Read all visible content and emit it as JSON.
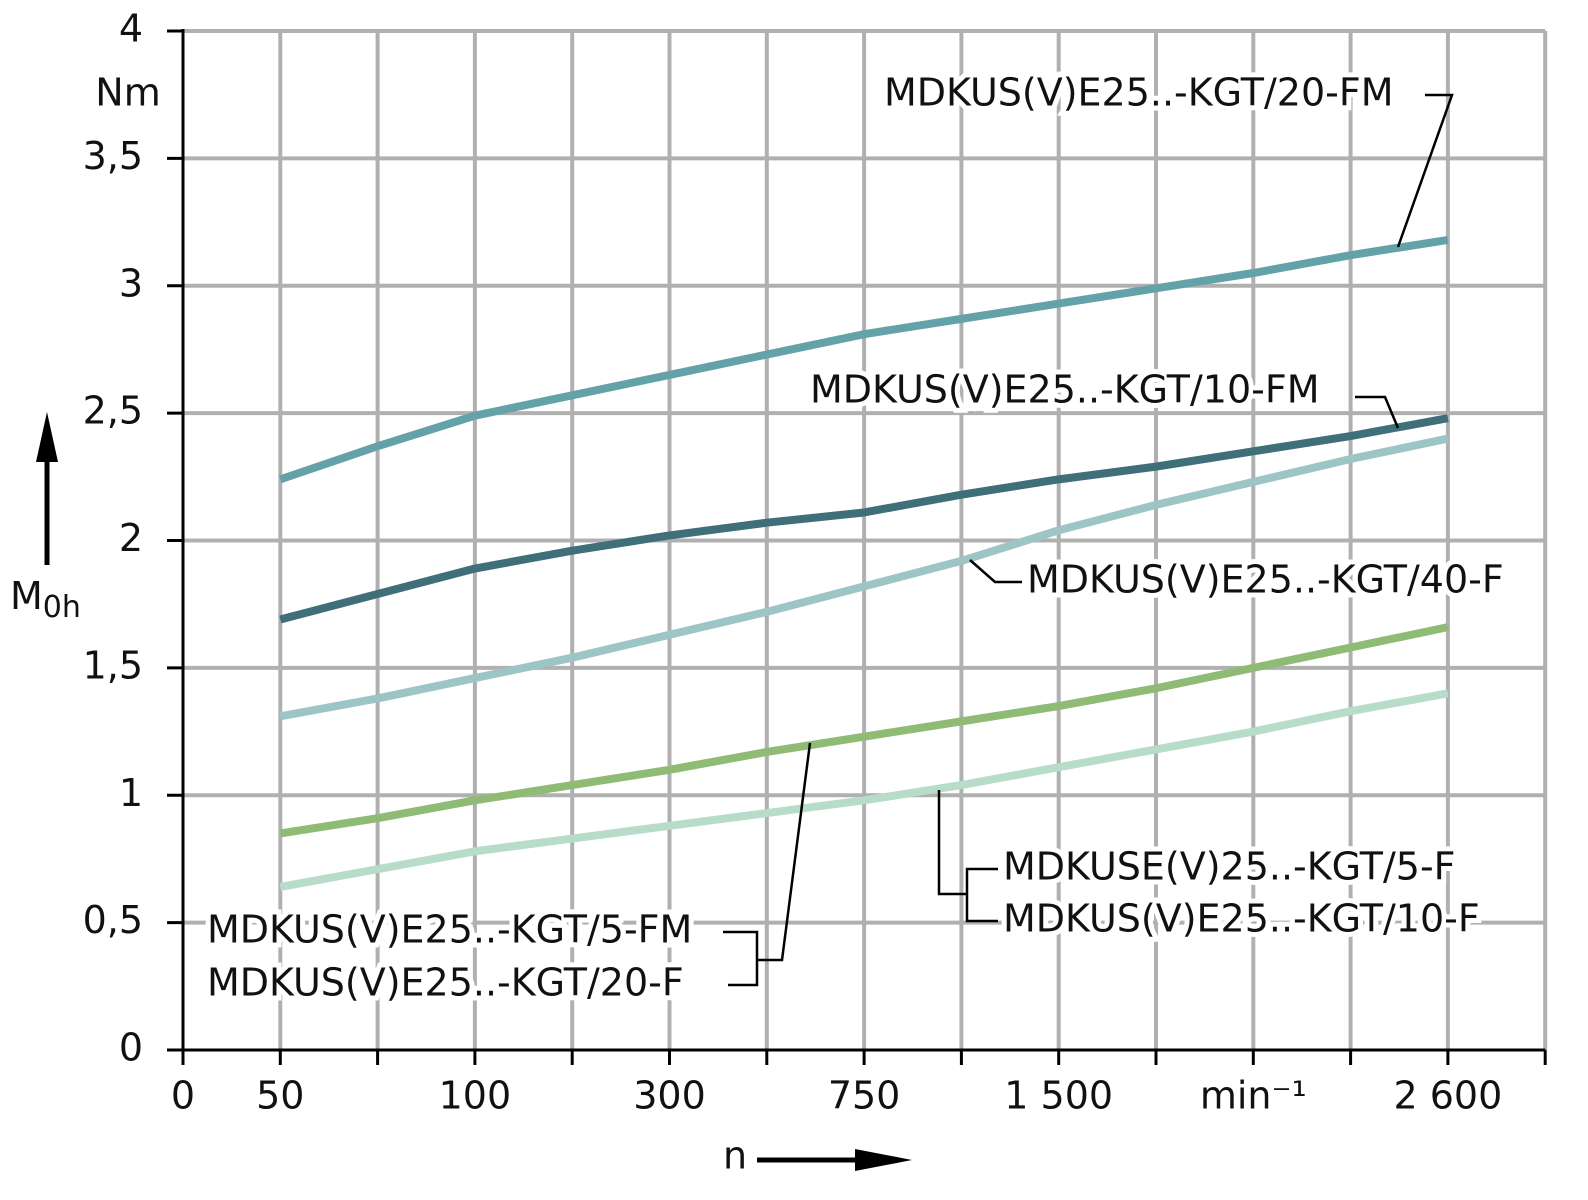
{
  "chart_data": {
    "type": "line",
    "y_unit": "Nm",
    "y_label": "M",
    "y_label_sub": "0h",
    "x_label": "n",
    "x_unit": "min⁻¹",
    "categories": [
      "0",
      "50",
      null,
      "100",
      null,
      "300",
      null,
      "750",
      null,
      "1 500",
      null,
      null,
      null,
      "2 600",
      null
    ],
    "series": [
      {
        "names": [
          "MDKUS(V)E25..-KGT/20-FM"
        ],
        "color": "#64a2aa",
        "values": [
          null,
          2.24,
          2.37,
          2.49,
          2.57,
          2.65,
          2.73,
          2.81,
          2.87,
          2.93,
          2.99,
          3.05,
          3.12,
          3.18,
          null
        ]
      },
      {
        "names": [
          "MDKUS(V)E25..-KGT/10-FM"
        ],
        "color": "#3f6f79",
        "values": [
          null,
          1.69,
          1.79,
          1.89,
          1.96,
          2.02,
          2.07,
          2.11,
          2.18,
          2.24,
          2.29,
          2.35,
          2.41,
          2.48,
          null
        ]
      },
      {
        "names": [
          "MDKUS(V)E25..-KGT/40-F"
        ],
        "color": "#9dc5c6",
        "values": [
          null,
          1.31,
          1.38,
          1.46,
          1.54,
          1.63,
          1.72,
          1.82,
          1.92,
          2.04,
          2.14,
          2.23,
          2.32,
          2.4,
          null
        ]
      },
      {
        "names": [
          "MDKUS(V)E25..-KGT/5-FM",
          "MDKUS(V)E25..-KGT/20-F"
        ],
        "color": "#8fbb75",
        "values": [
          null,
          0.85,
          0.91,
          0.98,
          1.04,
          1.1,
          1.17,
          1.23,
          1.29,
          1.35,
          1.42,
          1.5,
          1.58,
          1.66,
          null
        ]
      },
      {
        "names": [
          "MDKUSE(V)25..-KGT/5-F",
          "MDKUS(V)E25..-KGT/10-F"
        ],
        "color": "#b7dcc9",
        "values": [
          null,
          0.64,
          0.71,
          0.78,
          0.83,
          0.88,
          0.93,
          0.98,
          1.04,
          1.11,
          1.18,
          1.25,
          1.33,
          1.4,
          null
        ]
      }
    ],
    "ylim": [
      0,
      4
    ],
    "yticks": [
      0,
      {
        "value": 0.5,
        "label": "0,5"
      },
      1,
      {
        "value": 1.5,
        "label": "1,5"
      },
      2,
      {
        "value": 2.5,
        "label": "2,5"
      },
      3,
      {
        "value": 3.5,
        "label": "3,5"
      },
      4
    ],
    "grid": true
  }
}
